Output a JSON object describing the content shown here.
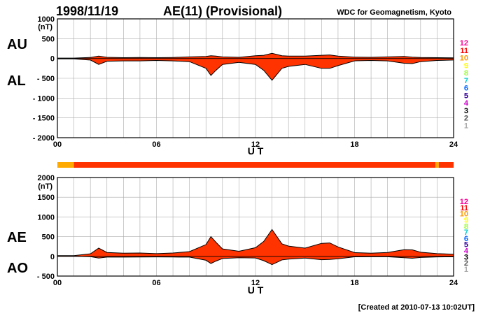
{
  "header": {
    "date": "1998/11/19",
    "title": "AE(11) (Provisional)",
    "source": "WDC for Geomagnetism, Kyoto"
  },
  "footer": {
    "created": "[Created at 2010-07-13 10:02UT]"
  },
  "colors": {
    "fill": "#ff3300",
    "outline": "#000000",
    "grid": "#aaaaaa",
    "bar_main": "#ff3300",
    "bar_low": "#ffaa00"
  },
  "legend_numbers": [
    "12",
    "11",
    "10",
    "9",
    "8",
    "7",
    "6",
    "5",
    "4",
    "3",
    "2",
    "1"
  ],
  "legend_colors": [
    "#ff0099",
    "#ff0000",
    "#ff9900",
    "#ffff00",
    "#99ff33",
    "#00cccc",
    "#0066ff",
    "#330099",
    "#cc00cc",
    "#000000",
    "#555555",
    "#aaaaaa"
  ],
  "station_bar": {
    "segments": [
      {
        "from": 0.0,
        "to": 1.0,
        "count": "10"
      },
      {
        "from": 1.0,
        "to": 22.9,
        "count": "11"
      },
      {
        "from": 22.9,
        "to": 23.1,
        "count": "10"
      },
      {
        "from": 23.1,
        "to": 24.0,
        "count": "11"
      }
    ]
  },
  "chart_data": [
    {
      "type": "area",
      "panel": "upper",
      "series_labels": [
        "AU",
        "AL"
      ],
      "unit": "(nT)",
      "xlabel": "U T",
      "xlim": [
        0,
        24
      ],
      "ylim": [
        -2000,
        1000
      ],
      "xticks": [
        "00",
        "06",
        "12",
        "18",
        "24"
      ],
      "yticks": [
        "1000",
        "500",
        "0",
        "- 500",
        "- 1000",
        "- 1500",
        "- 2000"
      ],
      "grid": true,
      "x": [
        0,
        1,
        2,
        2.5,
        3,
        4,
        5,
        6,
        7,
        8,
        9,
        9.3,
        9.6,
        10,
        11,
        12,
        12.5,
        13,
        13.3,
        13.6,
        14,
        15,
        16,
        16.5,
        17,
        18,
        19,
        20,
        21,
        21.5,
        22,
        23,
        24
      ],
      "series": [
        {
          "name": "AU",
          "values": [
            10,
            10,
            25,
            60,
            30,
            20,
            25,
            20,
            25,
            40,
            50,
            70,
            60,
            40,
            30,
            70,
            80,
            130,
            100,
            70,
            60,
            60,
            80,
            90,
            60,
            35,
            30,
            40,
            50,
            35,
            25,
            20,
            15
          ]
        },
        {
          "name": "AL",
          "values": [
            -10,
            -10,
            -40,
            -150,
            -70,
            -60,
            -60,
            -50,
            -60,
            -80,
            -250,
            -430,
            -300,
            -150,
            -100,
            -150,
            -300,
            -550,
            -400,
            -250,
            -200,
            -150,
            -250,
            -250,
            -180,
            -60,
            -50,
            -60,
            -120,
            -130,
            -80,
            -50,
            -40
          ]
        }
      ]
    },
    {
      "type": "area",
      "panel": "lower",
      "series_labels": [
        "AE",
        "AO"
      ],
      "unit": "(nT)",
      "xlabel": "U T",
      "xlim": [
        0,
        24
      ],
      "ylim": [
        -500,
        2000
      ],
      "xticks": [
        "00",
        "06",
        "12",
        "18",
        "24"
      ],
      "yticks": [
        "2000",
        "1500",
        "1000",
        "500",
        "0",
        "- 500"
      ],
      "grid": true,
      "x": [
        0,
        1,
        2,
        2.5,
        3,
        4,
        5,
        6,
        7,
        8,
        9,
        9.3,
        9.6,
        10,
        11,
        12,
        12.5,
        13,
        13.3,
        13.6,
        14,
        15,
        16,
        16.5,
        17,
        18,
        19,
        20,
        21,
        21.5,
        22,
        23,
        24
      ],
      "series": [
        {
          "name": "AE",
          "values": [
            20,
            20,
            65,
            210,
            100,
            80,
            85,
            70,
            85,
            120,
            300,
            500,
            360,
            190,
            130,
            220,
            380,
            680,
            500,
            320,
            260,
            210,
            330,
            340,
            240,
            95,
            80,
            100,
            170,
            165,
            105,
            70,
            55
          ]
        },
        {
          "name": "AO",
          "values": [
            0,
            0,
            -8,
            -45,
            -20,
            -20,
            -18,
            -15,
            -18,
            -20,
            -100,
            -180,
            -120,
            -55,
            -35,
            -40,
            -110,
            -210,
            -150,
            -90,
            -70,
            -45,
            -85,
            -80,
            -60,
            -12,
            -10,
            -10,
            -35,
            -48,
            -28,
            -15,
            -12
          ]
        }
      ]
    }
  ]
}
